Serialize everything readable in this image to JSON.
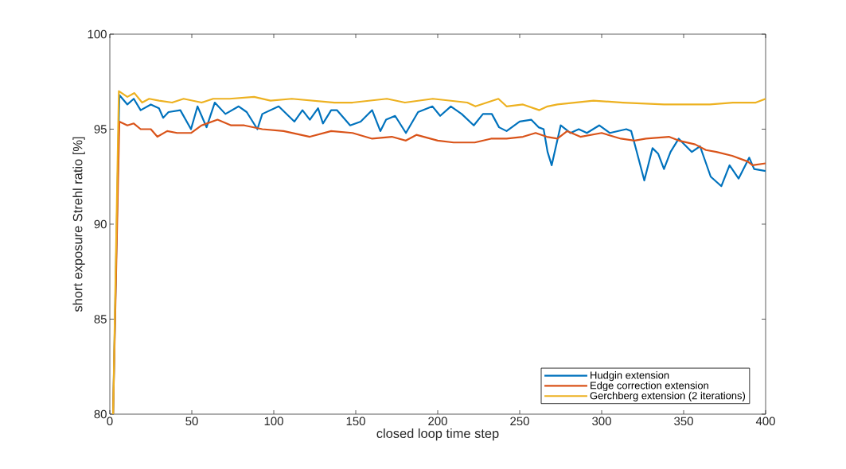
{
  "chart_data": {
    "type": "line",
    "xlabel": "closed loop time step",
    "ylabel": "short exposure Strehl ratio [%]",
    "xlim": [
      0,
      400
    ],
    "ylim": [
      80,
      100
    ],
    "xticks": [
      0,
      50,
      100,
      150,
      200,
      250,
      300,
      350,
      400
    ],
    "yticks": [
      80,
      85,
      90,
      95,
      100
    ],
    "grid": false,
    "legend": "bottom right",
    "marker": "none",
    "line_style": "solid",
    "series": [
      {
        "name": "Hudgin extension",
        "color": "#0072bd",
        "x": [
          2,
          5.8,
          10.7,
          14.6,
          18.8,
          25,
          30,
          32.5,
          35.8,
          43,
          49.5,
          53.5,
          59,
          64,
          70.5,
          78.6,
          83.5,
          90,
          93,
          103,
          112.6,
          117.5,
          122,
          127,
          130,
          135,
          138.5,
          146.6,
          153,
          160,
          165,
          168.5,
          174,
          180.6,
          188,
          196.8,
          201.5,
          208,
          214.6,
          222,
          227.6,
          233,
          237.4,
          242,
          250,
          257,
          261.5,
          264.6,
          267,
          269.5,
          275,
          281,
          286,
          291,
          298.5,
          305,
          315,
          318,
          320.5,
          326,
          331,
          334.5,
          338,
          342,
          347,
          355,
          360,
          366.5,
          373,
          378,
          383.5,
          390,
          393,
          400
        ],
        "values": [
          80,
          96.8,
          96.3,
          96.6,
          96.0,
          96.3,
          96.1,
          95.6,
          95.9,
          96.0,
          95.0,
          96.2,
          95.1,
          96.4,
          95.8,
          96.2,
          95.9,
          95.0,
          95.8,
          96.2,
          95.4,
          96.0,
          95.5,
          96.1,
          95.3,
          96.0,
          96.0,
          95.2,
          95.4,
          96.0,
          94.9,
          95.5,
          95.7,
          94.8,
          95.9,
          96.2,
          95.7,
          96.2,
          95.8,
          95.2,
          95.8,
          95.8,
          95.1,
          94.9,
          95.4,
          95.5,
          95.1,
          95.0,
          93.8,
          93.1,
          95.2,
          94.8,
          95.0,
          94.8,
          95.2,
          94.8,
          95.0,
          94.9,
          94.1,
          92.3,
          94.0,
          93.7,
          92.9,
          93.8,
          94.5,
          93.8,
          94.1,
          92.5,
          92.0,
          93.1,
          92.4,
          93.5,
          92.9,
          92.8
        ]
      },
      {
        "name": "Edge correction extension",
        "color": "#d95319",
        "x": [
          2,
          5.8,
          10.7,
          14.6,
          18.8,
          25,
          29,
          35,
          41,
          49.5,
          56,
          65.7,
          74,
          82,
          93,
          106,
          122,
          135,
          148,
          160,
          172,
          180.6,
          187,
          200,
          209.7,
          222.6,
          232.5,
          242,
          252,
          259.7,
          266.5,
          273,
          279,
          287,
          300,
          311.7,
          320,
          327,
          341,
          347,
          357,
          363.6,
          370,
          379.6,
          389,
          392,
          400
        ],
        "values": [
          80,
          95.4,
          95.2,
          95.3,
          95.0,
          95.0,
          94.6,
          94.9,
          94.8,
          94.8,
          95.2,
          95.5,
          95.2,
          95.2,
          95.0,
          94.9,
          94.6,
          94.9,
          94.8,
          94.5,
          94.6,
          94.4,
          94.7,
          94.4,
          94.3,
          94.3,
          94.5,
          94.5,
          94.6,
          94.8,
          94.6,
          94.5,
          94.9,
          94.6,
          94.8,
          94.5,
          94.4,
          94.5,
          94.6,
          94.4,
          94.2,
          93.9,
          93.8,
          93.6,
          93.3,
          93.1,
          93.2
        ]
      },
      {
        "name": "Gerchberg extension (2 iterations)",
        "color": "#edb120",
        "x": [
          2,
          5.5,
          10.7,
          15,
          19.7,
          24,
          30,
          38,
          45,
          56,
          63,
          73,
          88,
          98,
          111,
          124,
          137,
          148,
          169,
          180,
          197,
          218,
          223,
          237,
          242,
          252,
          262,
          267,
          273,
          295,
          313,
          338,
          366,
          380,
          394,
          400
        ],
        "values": [
          80,
          97.0,
          96.7,
          96.9,
          96.4,
          96.6,
          96.5,
          96.4,
          96.6,
          96.4,
          96.6,
          96.6,
          96.7,
          96.5,
          96.6,
          96.5,
          96.4,
          96.4,
          96.6,
          96.4,
          96.6,
          96.4,
          96.2,
          96.6,
          96.2,
          96.3,
          96.0,
          96.2,
          96.3,
          96.5,
          96.4,
          96.3,
          96.3,
          96.4,
          96.4,
          96.6
        ]
      }
    ]
  }
}
